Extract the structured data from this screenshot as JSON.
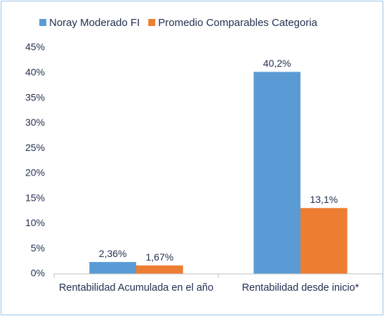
{
  "chart_data": {
    "type": "bar",
    "categories": [
      "Rentabilidad Acumulada en el año",
      "Rentabilidad desde inicio*"
    ],
    "series": [
      {
        "name": "Noray Moderado FI",
        "color": "#5b9bd5",
        "values": [
          2.36,
          40.2
        ],
        "value_labels": [
          "2,36%",
          "40,2%"
        ]
      },
      {
        "name": "Promedio Comparables Categoria",
        "color": "#ed7d31",
        "values": [
          1.67,
          13.1
        ],
        "value_labels": [
          "1,67%",
          "13,1%"
        ]
      }
    ],
    "ylim": [
      0,
      45
    ],
    "yticks": [
      {
        "value": 0,
        "label": "0%"
      },
      {
        "value": 5,
        "label": "5%"
      },
      {
        "value": 10,
        "label": "10%"
      },
      {
        "value": 15,
        "label": "15%"
      },
      {
        "value": 20,
        "label": "20%"
      },
      {
        "value": 25,
        "label": "25%"
      },
      {
        "value": 30,
        "label": "30%"
      },
      {
        "value": 35,
        "label": "35%"
      },
      {
        "value": 40,
        "label": "40%"
      },
      {
        "value": 45,
        "label": "45%"
      }
    ],
    "grid": false,
    "legend": "top"
  }
}
